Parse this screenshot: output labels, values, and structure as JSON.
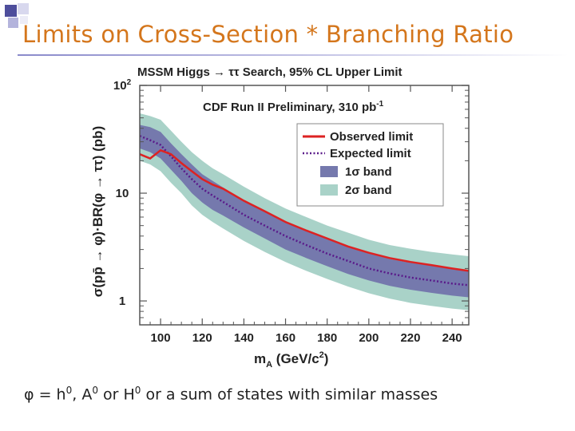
{
  "slide": {
    "title": "Limits on Cross-Section * Branching Ratio",
    "footnote": {
      "phi": "φ",
      "eq": " = h",
      "s1": "0",
      "p2": ", A",
      "s2": "0",
      "p3": " or H",
      "s3": "0",
      "p4": " or a sum of states with similar masses"
    },
    "colors": {
      "title": "#d4761c",
      "accent_square": "#5b5ba8"
    }
  },
  "chart_data": {
    "type": "line",
    "title": "MSSM Higgs → ττ Search, 95% CL Upper Limit",
    "title_parts": {
      "left": "MSSM Higgs",
      "arrow": "→",
      "right": "ττ Search, 95% CL Upper Limit"
    },
    "subtitle": "CDF Run II Preliminary, 310 pb",
    "subtitle_sup": "-1",
    "xlabel": {
      "base": "m",
      "sub": "A",
      "rest": " (GeV/c",
      "sup": "2",
      "close": ")"
    },
    "ylabel": "σ(pp̄ → φ)·BR(φ → ττ) (pb)",
    "x_ticks": [
      100,
      120,
      140,
      160,
      180,
      200,
      220,
      240
    ],
    "xlim": [
      90,
      248
    ],
    "y_ticks": [
      {
        "value": 1,
        "label": "1"
      },
      {
        "value": 10,
        "label": "10"
      },
      {
        "value": 100,
        "label": "10",
        "sup": "2"
      }
    ],
    "ylim": [
      0.6,
      100
    ],
    "yscale": "log",
    "legend_position": "top-right",
    "legend": [
      {
        "key": "observed",
        "label": "Observed limit",
        "color": "#dd2222",
        "style": "solid-line"
      },
      {
        "key": "expected",
        "label": "Expected limit",
        "color": "#5a1a8a",
        "style": "dotted-line"
      },
      {
        "key": "band1",
        "label": "1σ band",
        "color": "#7579ad",
        "style": "box"
      },
      {
        "key": "band2",
        "label": "2σ band",
        "color": "#a9d2c8",
        "style": "box"
      }
    ],
    "x": [
      90,
      95,
      100,
      105,
      110,
      115,
      120,
      125,
      130,
      140,
      150,
      160,
      170,
      180,
      190,
      200,
      210,
      220,
      230,
      240,
      248
    ],
    "series": [
      {
        "name": "Observed limit",
        "values": [
          23,
          21,
          25,
          23,
          19,
          16,
          13.5,
          12,
          11,
          8.5,
          6.8,
          5.4,
          4.5,
          3.8,
          3.2,
          2.8,
          2.5,
          2.3,
          2.15,
          2.0,
          1.9
        ]
      },
      {
        "name": "Expected limit",
        "values": [
          34,
          31,
          28,
          22,
          17,
          13.5,
          11,
          9.5,
          8.3,
          6.3,
          5.0,
          4.0,
          3.3,
          2.75,
          2.35,
          2.0,
          1.8,
          1.65,
          1.55,
          1.45,
          1.4
        ]
      },
      {
        "name": "1σ band",
        "lower": [
          26,
          24,
          21,
          16.5,
          13,
          10,
          8.2,
          7.0,
          6.2,
          4.8,
          3.8,
          3.0,
          2.5,
          2.1,
          1.78,
          1.55,
          1.38,
          1.27,
          1.19,
          1.12,
          1.08
        ],
        "upper": [
          43,
          41,
          37,
          29,
          23,
          18.5,
          15,
          13,
          11.3,
          8.6,
          6.8,
          5.5,
          4.5,
          3.75,
          3.2,
          2.75,
          2.45,
          2.26,
          2.12,
          2.0,
          1.93
        ]
      },
      {
        "name": "2σ band",
        "lower": [
          20,
          18.5,
          16,
          12.5,
          10,
          7.7,
          6.3,
          5.4,
          4.7,
          3.6,
          2.85,
          2.3,
          1.9,
          1.6,
          1.36,
          1.18,
          1.05,
          0.96,
          0.9,
          0.85,
          0.82
        ],
        "upper": [
          55,
          52,
          48,
          38,
          30,
          24,
          20,
          17,
          15,
          11.5,
          9.0,
          7.2,
          6.0,
          5.0,
          4.3,
          3.7,
          3.3,
          3.05,
          2.85,
          2.7,
          2.6
        ]
      }
    ]
  }
}
